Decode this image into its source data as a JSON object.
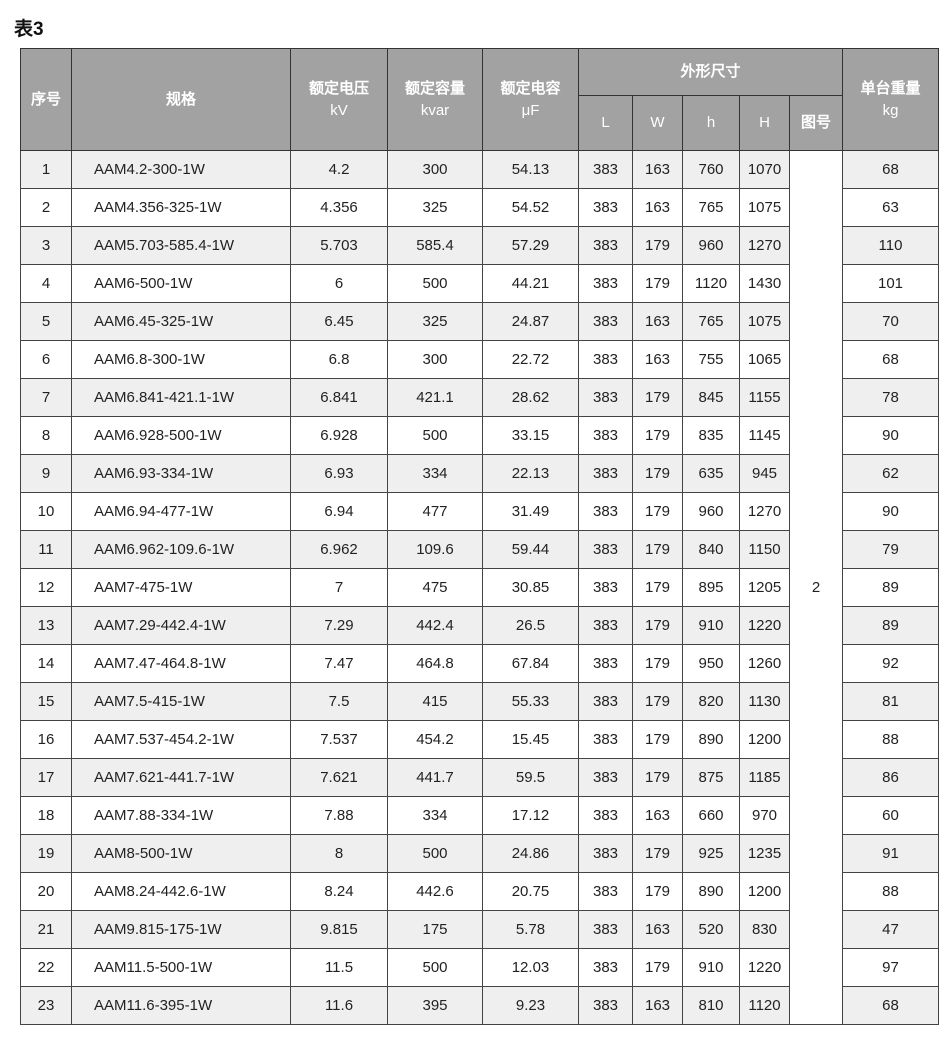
{
  "title": "表3",
  "headers": {
    "index": "序号",
    "spec": "规格",
    "voltage": "额定电压",
    "voltage_unit": "kV",
    "capacity": "额定容量",
    "capacity_unit": "kvar",
    "capacitance": "额定电容",
    "capacitance_unit": "μF",
    "dimensions": "外形尺寸",
    "L": "L",
    "W": "W",
    "h": "h",
    "H": "H",
    "figure": "图号",
    "weight": "单台重量",
    "weight_unit": "kg"
  },
  "figure_value": "2",
  "rows": [
    [
      "1",
      "AAM4.2-300-1W",
      "4.2",
      "300",
      "54.13",
      "383",
      "163",
      "760",
      "1070",
      "68"
    ],
    [
      "2",
      "AAM4.356-325-1W",
      "4.356",
      "325",
      "54.52",
      "383",
      "163",
      "765",
      "1075",
      "63"
    ],
    [
      "3",
      "AAM5.703-585.4-1W",
      "5.703",
      "585.4",
      "57.29",
      "383",
      "179",
      "960",
      "1270",
      "110"
    ],
    [
      "4",
      "AAM6-500-1W",
      "6",
      "500",
      "44.21",
      "383",
      "179",
      "1120",
      "1430",
      "101"
    ],
    [
      "5",
      "AAM6.45-325-1W",
      "6.45",
      "325",
      "24.87",
      "383",
      "163",
      "765",
      "1075",
      "70"
    ],
    [
      "6",
      "AAM6.8-300-1W",
      "6.8",
      "300",
      "22.72",
      "383",
      "163",
      "755",
      "1065",
      "68"
    ],
    [
      "7",
      "AAM6.841-421.1-1W",
      "6.841",
      "421.1",
      "28.62",
      "383",
      "179",
      "845",
      "1155",
      "78"
    ],
    [
      "8",
      "AAM6.928-500-1W",
      "6.928",
      "500",
      "33.15",
      "383",
      "179",
      "835",
      "1145",
      "90"
    ],
    [
      "9",
      "AAM6.93-334-1W",
      "6.93",
      "334",
      "22.13",
      "383",
      "179",
      "635",
      "945",
      "62"
    ],
    [
      "10",
      "AAM6.94-477-1W",
      "6.94",
      "477",
      "31.49",
      "383",
      "179",
      "960",
      "1270",
      "90"
    ],
    [
      "11",
      "AAM6.962-109.6-1W",
      "6.962",
      "109.6",
      "59.44",
      "383",
      "179",
      "840",
      "1150",
      "79"
    ],
    [
      "12",
      "AAM7-475-1W",
      "7",
      "475",
      "30.85",
      "383",
      "179",
      "895",
      "1205",
      "89"
    ],
    [
      "13",
      "AAM7.29-442.4-1W",
      "7.29",
      "442.4",
      "26.5",
      "383",
      "179",
      "910",
      "1220",
      "89"
    ],
    [
      "14",
      "AAM7.47-464.8-1W",
      "7.47",
      "464.8",
      "67.84",
      "383",
      "179",
      "950",
      "1260",
      "92"
    ],
    [
      "15",
      "AAM7.5-415-1W",
      "7.5",
      "415",
      "55.33",
      "383",
      "179",
      "820",
      "1130",
      "81"
    ],
    [
      "16",
      "AAM7.537-454.2-1W",
      "7.537",
      "454.2",
      "15.45",
      "383",
      "179",
      "890",
      "1200",
      "88"
    ],
    [
      "17",
      "AAM7.621-441.7-1W",
      "7.621",
      "441.7",
      "59.5",
      "383",
      "179",
      "875",
      "1185",
      "86"
    ],
    [
      "18",
      "AAM7.88-334-1W",
      "7.88",
      "334",
      "17.12",
      "383",
      "163",
      "660",
      "970",
      "60"
    ],
    [
      "19",
      "AAM8-500-1W",
      "8",
      "500",
      "24.86",
      "383",
      "179",
      "925",
      "1235",
      "91"
    ],
    [
      "20",
      "AAM8.24-442.6-1W",
      "8.24",
      "442.6",
      "20.75",
      "383",
      "179",
      "890",
      "1200",
      "88"
    ],
    [
      "21",
      "AAM9.815-175-1W",
      "9.815",
      "175",
      "5.78",
      "383",
      "163",
      "520",
      "830",
      "47"
    ],
    [
      "22",
      "AAM11.5-500-1W",
      "11.5",
      "500",
      "12.03",
      "383",
      "179",
      "910",
      "1220",
      "97"
    ],
    [
      "23",
      "AAM11.6-395-1W",
      "11.6",
      "395",
      "9.23",
      "383",
      "163",
      "810",
      "1120",
      "68"
    ]
  ]
}
